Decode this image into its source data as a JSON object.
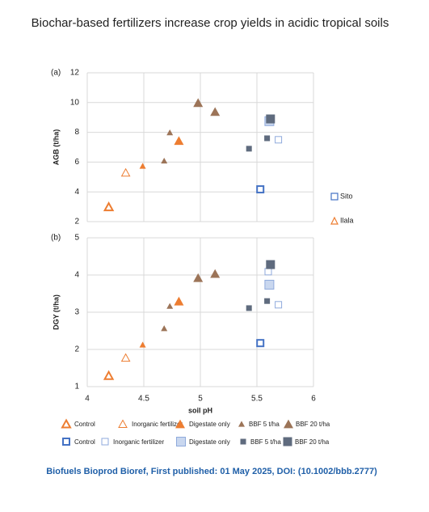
{
  "title": "Biochar-based fertilizers increase crop yields in acidic tropical soils",
  "citation": "Biofuels Bioprod Bioref, First published: 01 May 2025, DOI: (10.1002/bbb.2777)",
  "chart_data": [
    {
      "type": "scatter",
      "panel": "(a)",
      "y_label": "AGB (t/ha)",
      "xlim": [
        4,
        6
      ],
      "xticks": [
        4,
        4.5,
        5,
        5.5,
        6
      ],
      "ylim": [
        2,
        12
      ],
      "yticks": [
        2,
        4,
        6,
        8,
        10,
        12
      ],
      "grid": true,
      "legend_groups": [
        "Sito",
        "Ilala"
      ],
      "series": [
        {
          "name": "Control",
          "color": "#ed7d31",
          "x": [
            4.19
          ],
          "values": [
            3.0
          ]
        },
        {
          "name": "Inorganic fertilizer",
          "color": "#ed7d31",
          "x": [
            4.34
          ],
          "values": [
            5.3
          ]
        },
        {
          "name": "Digestate only",
          "color": "#ed7d31",
          "x": [
            4.49,
            4.81
          ],
          "values": [
            5.75,
            7.45
          ]
        },
        {
          "name": "BBF 5 t/ha",
          "color": "#9c7458",
          "x": [
            4.73,
            4.68
          ],
          "values": [
            8.0,
            6.1
          ]
        },
        {
          "name": "BBF 20 t/ha",
          "color": "#9c7458",
          "x": [
            4.98,
            5.13
          ],
          "values": [
            10.0,
            9.4
          ]
        },
        {
          "name": "Control",
          "color": "#4472c4",
          "x": [
            5.53
          ],
          "values": [
            4.17
          ]
        },
        {
          "name": "Inorganic fertilizer",
          "color": "#8faadc",
          "x": [
            5.6,
            5.69
          ],
          "values": [
            8.7,
            7.5
          ]
        },
        {
          "name": "Digestate only",
          "color": "#8faadc",
          "x": [
            5.61
          ],
          "values": [
            8.75
          ]
        },
        {
          "name": "BBF 5 t/ha",
          "color": "#5f6b7e",
          "x": [
            5.43,
            5.59
          ],
          "values": [
            6.9,
            7.6
          ]
        },
        {
          "name": "BBF 20 t/ha",
          "color": "#5f6b7e",
          "x": [
            5.62
          ],
          "values": [
            8.9
          ]
        }
      ]
    },
    {
      "type": "scatter",
      "panel": "(b)",
      "y_label": "DGY (t/ha)",
      "x_label": "soil pH",
      "xlim": [
        4,
        6
      ],
      "xticks": [
        4,
        4.5,
        5,
        5.5,
        6
      ],
      "ylim": [
        1,
        5
      ],
      "yticks": [
        1,
        2,
        3,
        4,
        5
      ],
      "grid": true,
      "series": [
        {
          "name": "Control",
          "color": "#ed7d31",
          "x": [
            4.19
          ],
          "values": [
            1.3
          ]
        },
        {
          "name": "Inorganic fertilizer",
          "color": "#ed7d31",
          "x": [
            4.34
          ],
          "values": [
            1.78
          ]
        },
        {
          "name": "Digestate only",
          "color": "#ed7d31",
          "x": [
            4.49,
            4.81
          ],
          "values": [
            2.13,
            3.3
          ]
        },
        {
          "name": "BBF 5 t/ha",
          "color": "#9c7458",
          "x": [
            4.73,
            4.68
          ],
          "values": [
            3.17,
            2.57
          ]
        },
        {
          "name": "BBF 20 t/ha",
          "color": "#9c7458",
          "x": [
            4.98,
            5.13
          ],
          "values": [
            3.93,
            4.04
          ]
        },
        {
          "name": "Control",
          "color": "#4472c4",
          "x": [
            5.53
          ],
          "values": [
            2.17
          ]
        },
        {
          "name": "Inorganic fertilizer",
          "color": "#8faadc",
          "x": [
            5.6,
            5.69
          ],
          "values": [
            4.09,
            3.2
          ]
        },
        {
          "name": "Digestate only",
          "color": "#8faadc",
          "x": [
            5.61
          ],
          "values": [
            3.74
          ]
        },
        {
          "name": "BBF 5 t/ha",
          "color": "#5f6b7e",
          "x": [
            5.43,
            5.59
          ],
          "values": [
            3.11,
            3.3
          ]
        },
        {
          "name": "BBF 20 t/ha",
          "color": "#5f6b7e",
          "x": [
            5.62
          ],
          "values": [
            4.28
          ]
        }
      ]
    }
  ]
}
